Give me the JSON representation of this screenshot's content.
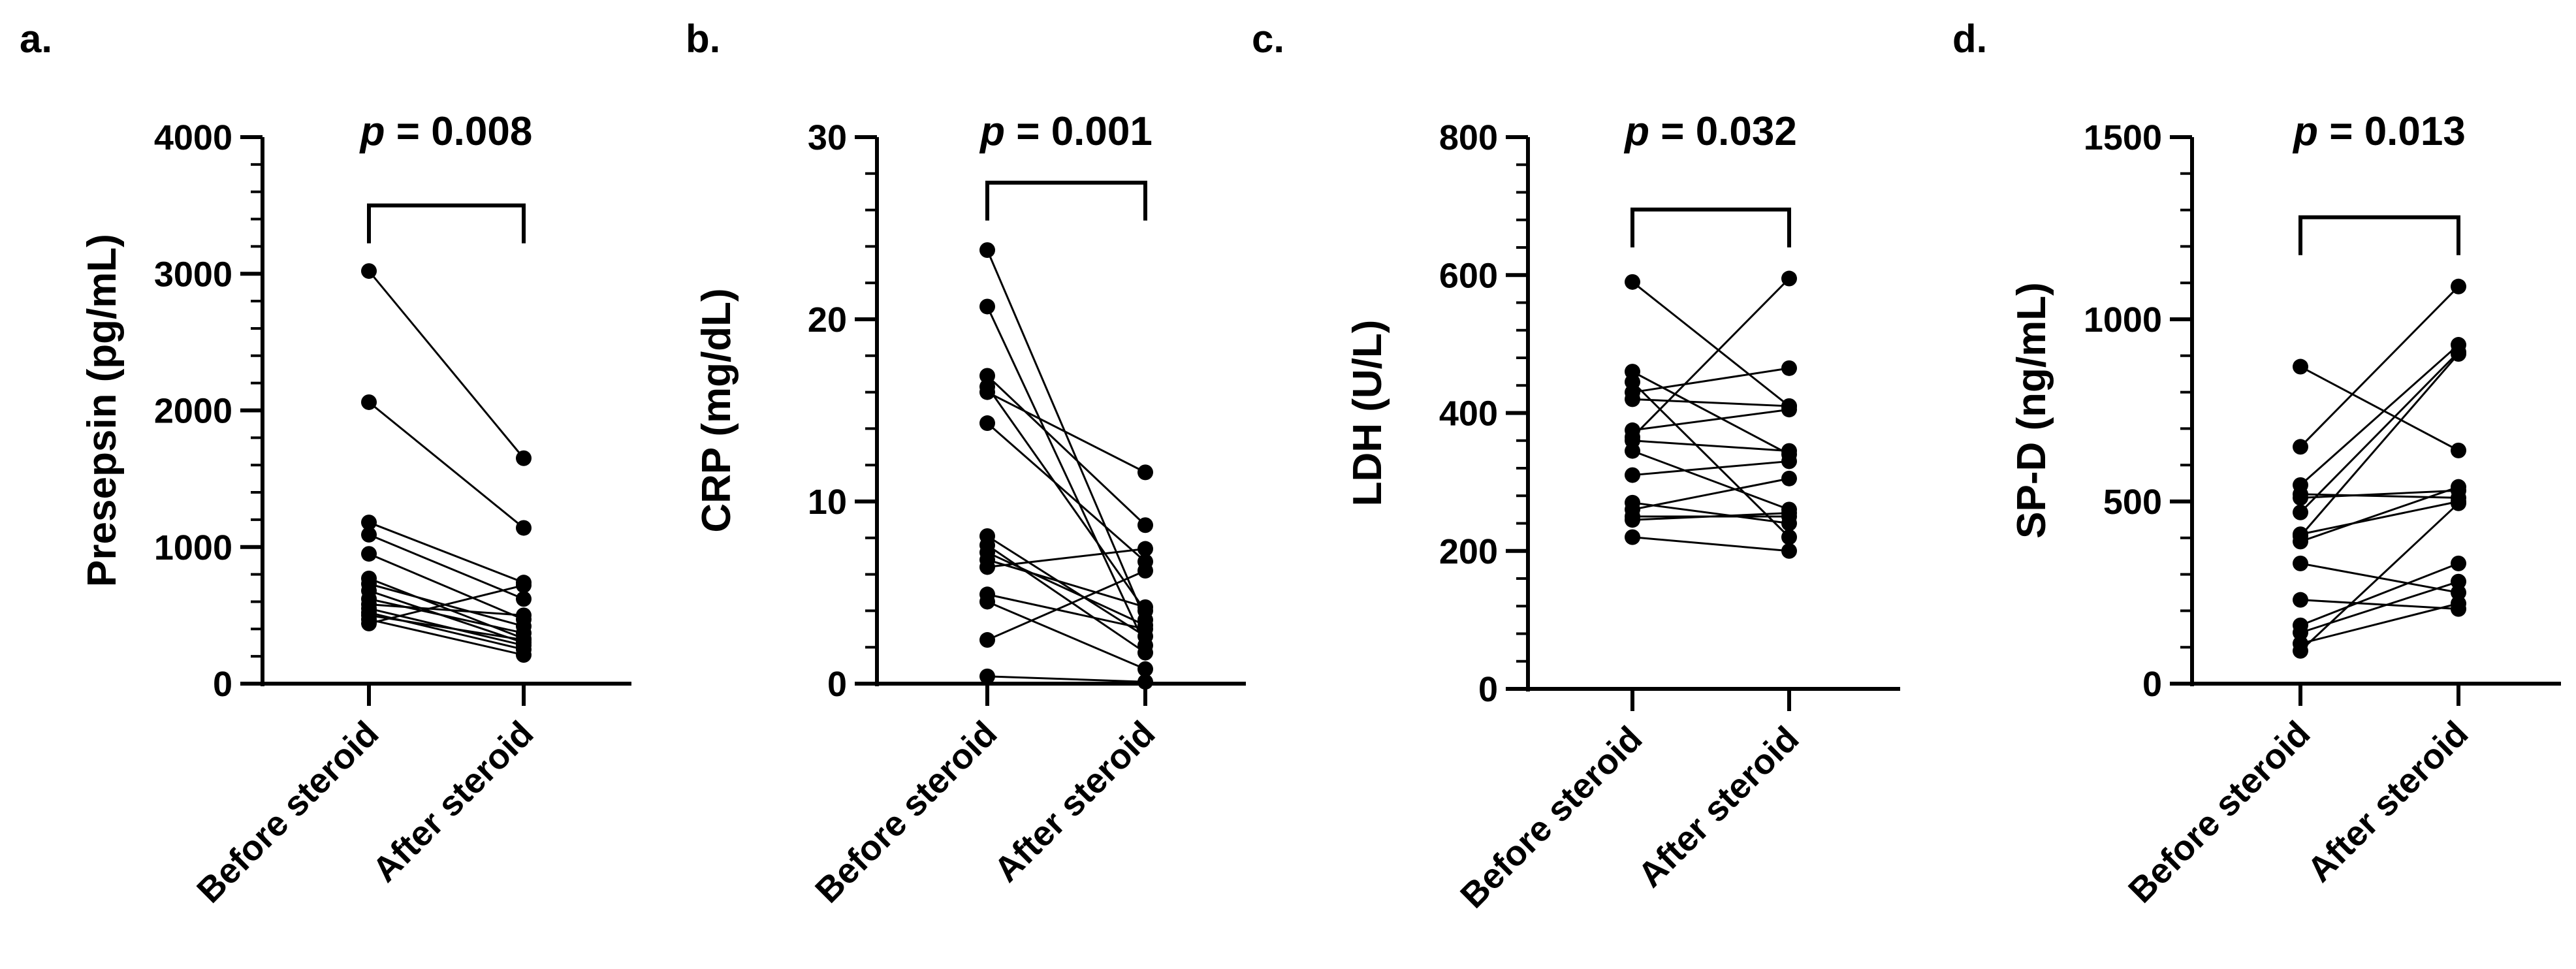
{
  "chart_data": [
    {
      "type": "paired-dot-line",
      "panel_label": "a.",
      "ylabel": "Presepsin (pg/mL)",
      "ylim": [
        0,
        4000
      ],
      "major_ticks": [
        0,
        1000,
        2000,
        3000,
        4000
      ],
      "tick_labels": [
        "0",
        "1000",
        "2000",
        "3000",
        "4000"
      ],
      "minor_step": 200,
      "categories": [
        "Before steroid",
        "After steroid"
      ],
      "p_prefix": "p",
      "p_value": "= 0.008",
      "bracket_y": 3500,
      "pairs": [
        [
          3020,
          1650
        ],
        [
          2060,
          1140
        ],
        [
          1180,
          740
        ],
        [
          1090,
          620
        ],
        [
          950,
          470
        ],
        [
          770,
          330
        ],
        [
          730,
          420
        ],
        [
          680,
          300
        ],
        [
          620,
          370
        ],
        [
          580,
          500
        ],
        [
          550,
          280
        ],
        [
          520,
          250
        ],
        [
          500,
          320
        ],
        [
          470,
          210
        ],
        [
          440,
          720
        ]
      ]
    },
    {
      "type": "paired-dot-line",
      "panel_label": "b.",
      "ylabel": "CRP (mg/dL)",
      "ylim": [
        0,
        30
      ],
      "major_ticks": [
        0,
        10,
        20,
        30
      ],
      "tick_labels": [
        "0",
        "10",
        "20",
        "30"
      ],
      "minor_step": 2,
      "categories": [
        "Before steroid",
        "After steroid"
      ],
      "p_prefix": "p",
      "p_value": "= 0.001",
      "bracket_y": 27.5,
      "pairs": [
        [
          23.8,
          3.5
        ],
        [
          20.7,
          2.1
        ],
        [
          16.9,
          8.7
        ],
        [
          16.3,
          4.0
        ],
        [
          16.0,
          11.6
        ],
        [
          14.3,
          6.7
        ],
        [
          8.1,
          2.6
        ],
        [
          7.6,
          1.7
        ],
        [
          7.2,
          3.2
        ],
        [
          6.8,
          4.2
        ],
        [
          6.4,
          7.4
        ],
        [
          4.9,
          3.0
        ],
        [
          4.5,
          0.8
        ],
        [
          2.4,
          6.2
        ],
        [
          0.4,
          0.1
        ]
      ]
    },
    {
      "type": "paired-dot-line",
      "panel_label": "c.",
      "ylabel": "LDH (U/L)",
      "ylim": [
        0,
        800
      ],
      "major_ticks": [
        0,
        200,
        400,
        600,
        800
      ],
      "tick_labels": [
        "0",
        "200",
        "400",
        "600",
        "800"
      ],
      "minor_step": 40,
      "categories": [
        "Before steroid",
        "After steroid"
      ],
      "p_prefix": "p",
      "p_value": "= 0.032",
      "bracket_y": 695,
      "pairs": [
        [
          590,
          410
        ],
        [
          460,
          340
        ],
        [
          445,
          220
        ],
        [
          430,
          465
        ],
        [
          420,
          410
        ],
        [
          375,
          405
        ],
        [
          365,
          595
        ],
        [
          360,
          345
        ],
        [
          345,
          260
        ],
        [
          310,
          330
        ],
        [
          270,
          240
        ],
        [
          260,
          305
        ],
        [
          250,
          250
        ],
        [
          245,
          255
        ],
        [
          220,
          200
        ]
      ]
    },
    {
      "type": "paired-dot-line",
      "panel_label": "d.",
      "ylabel": "SP-D (ng/mL)",
      "ylim": [
        0,
        1500
      ],
      "major_ticks": [
        0,
        500,
        1000,
        1500
      ],
      "tick_labels": [
        "0",
        "500",
        "1000",
        "1500"
      ],
      "minor_step": 100,
      "categories": [
        "Before steroid",
        "After steroid"
      ],
      "p_prefix": "p",
      "p_value": "= 0.013",
      "bracket_y": 1280,
      "pairs": [
        [
          870,
          640
        ],
        [
          650,
          1090
        ],
        [
          545,
          930
        ],
        [
          520,
          510
        ],
        [
          470,
          910
        ],
        [
          410,
          500
        ],
        [
          390,
          540
        ],
        [
          330,
          250
        ],
        [
          230,
          205
        ],
        [
          160,
          330
        ],
        [
          140,
          280
        ],
        [
          110,
          220
        ],
        [
          90,
          495
        ],
        [
          510,
          530
        ],
        [
          405,
          905
        ]
      ]
    }
  ]
}
